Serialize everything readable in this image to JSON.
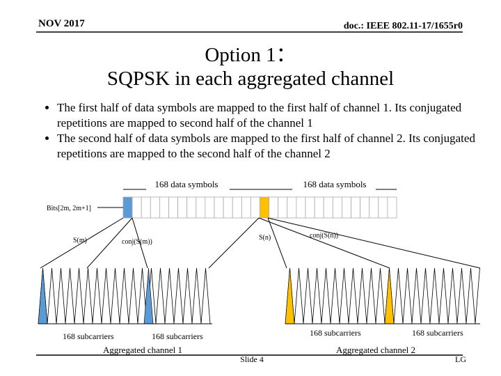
{
  "header": {
    "date": "NOV 2017",
    "doc": "doc.: IEEE 802.11-17/1655r0"
  },
  "title": {
    "line1": "Option 1：",
    "line2": "SQPSK in each aggregated channel"
  },
  "bullets": [
    "The first half of data symbols are mapped to the first half of channel 1. Its conjugated repetitions are mapped to second half of the channel 1",
    "The second half of data symbols are mapped to the first half of channel 2. Its conjugated repetitions are mapped to the second half of the channel 2"
  ],
  "diagram": {
    "symbols_left": "168 data symbols",
    "symbols_right": "168 data symbols",
    "bits": "Bits[2m, 2m+1]",
    "s_m": "S(m)",
    "conj_s_m": "conj(S(m))",
    "s_n": "S(n)",
    "conj_s_n": "conj(S(n))",
    "subcarriers": [
      "168 subcarriers",
      "168 subcarriers",
      "168 subcarriers",
      "168 subcarriers"
    ],
    "channel1": "Aggregated channel 1",
    "channel2": "Aggregated channel 2"
  },
  "footer": {
    "slide": "Slide 4",
    "org": "LG"
  }
}
